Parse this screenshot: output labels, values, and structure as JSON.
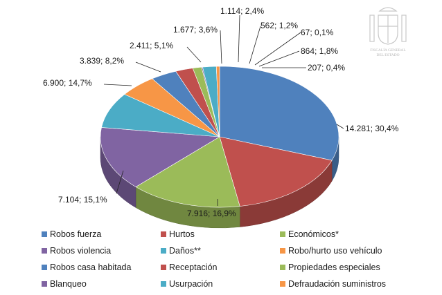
{
  "seal": {
    "line1": "FISCALÍA GENERAL",
    "line2": "DEL ESTADO"
  },
  "chart_data": {
    "type": "pie",
    "title": "",
    "slices": [
      {
        "name": "Robos fuerza",
        "value": 14281,
        "label": "14.281; 30,4%",
        "color": "#4f81bd"
      },
      {
        "name": "Hurtos",
        "value": 7916,
        "label": "7.916; 16,9%",
        "color": "#c0504d"
      },
      {
        "name": "Económicos*",
        "value": 7104,
        "label": "7.104; 15,1%",
        "color": "#9bbb59"
      },
      {
        "name": "Robos violencia",
        "value": 6900,
        "label": "6.900; 14,7%",
        "color": "#8064a2"
      },
      {
        "name": "Daños**",
        "value": 3839,
        "label": "3.839; 8,2%",
        "color": "#4bacc6"
      },
      {
        "name": "Robo/hurto uso vehículo",
        "value": 2411,
        "label": "2.411; 5,1%",
        "color": "#f79646"
      },
      {
        "name": "Robos casa habitada",
        "value": 1677,
        "label": "1.677; 3,6%",
        "color": "#4f81bd"
      },
      {
        "name": "Receptación",
        "value": 1114,
        "label": "1.114; 2,4%",
        "color": "#c0504d"
      },
      {
        "name": "Propiedades especiales",
        "value": 562,
        "label": "562; 1,2%",
        "color": "#9bbb59"
      },
      {
        "name": "Blanqueo",
        "value": 67,
        "label": "67; 0,1%",
        "color": "#8064a2"
      },
      {
        "name": "Usurpación",
        "value": 864,
        "label": "864; 1,8%",
        "color": "#4bacc6"
      },
      {
        "name": "Defraudación suministros",
        "value": 207,
        "label": "207; 0,4%",
        "color": "#f79646"
      }
    ],
    "legend_position": "bottom"
  }
}
